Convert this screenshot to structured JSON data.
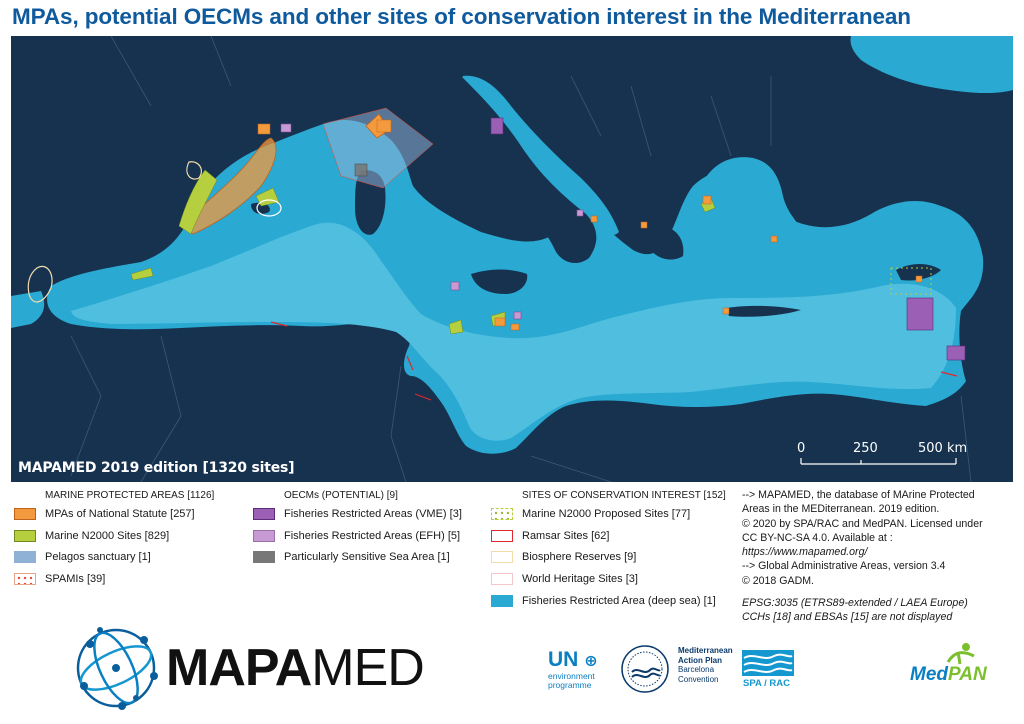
{
  "title": "MPAs, potential OECMs and other sites of conservation interest in the Mediterranean",
  "map": {
    "edition_label": "MAPAMED 2019 edition [1320 sites]",
    "scale_bar": {
      "labels": [
        "0",
        "250",
        "500 km"
      ],
      "unit": "km"
    },
    "colors": {
      "land": "#16324f",
      "sea": "#2aa9d2",
      "deep_sea_fra": "#4fbedf",
      "mpa": "#f39a3e",
      "n2000": "#b6cf3e",
      "pelagos": "#8fb1d6",
      "spami_dot": "#e8492e",
      "vme": "#9b5fb5",
      "efh": "#c89ad4",
      "pssa": "#777777",
      "ramsar": "#e0282e",
      "biosphere": "#f3dcac",
      "whs": "#f3c7c7"
    }
  },
  "legend": {
    "columns": [
      {
        "heading": "MARINE PROTECTED AREAS [1126]",
        "items": [
          {
            "label": "MPAs of National Statute [257]",
            "icon": "mpa-swatch"
          },
          {
            "label": "Marine N2000 Sites [829]",
            "icon": "n2000-swatch"
          },
          {
            "label": "Pelagos sanctuary [1]",
            "icon": "pelagos-swatch"
          },
          {
            "label": "SPAMIs [39]",
            "icon": "spami-swatch"
          }
        ]
      },
      {
        "heading": "OECMs (POTENTIAL) [9]",
        "items": [
          {
            "label": "Fisheries Restricted Areas (VME) [3]",
            "icon": "vme-swatch"
          },
          {
            "label": "Fisheries Restricted Areas (EFH) [5]",
            "icon": "efh-swatch"
          },
          {
            "label": "Particularly Sensitive Sea Area [1]",
            "icon": "pssa-swatch"
          }
        ]
      },
      {
        "heading": "SITES OF CONSERVATION INTEREST [152]",
        "items": [
          {
            "label": "Marine N2000 Proposed Sites [77]",
            "icon": "n2000-proposed-swatch"
          },
          {
            "label": "Ramsar Sites [62]",
            "icon": "ramsar-swatch"
          },
          {
            "label": "Biosphere Reserves [9]",
            "icon": "biosphere-swatch"
          },
          {
            "label": "World Heritage Sites [3]",
            "icon": "whs-swatch"
          },
          {
            "label": "Fisheries Restricted Area (deep sea) [1]",
            "icon": "deep-sea-fra-swatch"
          }
        ]
      }
    ]
  },
  "info": {
    "lines": [
      "--> MAPAMED, the database of MArine Protected",
      "Areas in the MEDiterranean. 2019 edition.",
      "© 2020 by SPA/RAC and MedPAN. Licensed under",
      "CC BY-NC-SA 4.0. Available at :",
      "https://www.mapamed.org/",
      "--> Global Administrative Areas, version 3.4",
      "© 2018 GADM."
    ],
    "notes": [
      "EPSG:3035 (ETRS89-extended / LAEA Europe)",
      "CCHs [18] and EBSAs [15] are not displayed"
    ]
  },
  "logos": {
    "mapamed": {
      "word_a": "MAPA",
      "word_b": "MED"
    },
    "unep": {
      "mark": "UN",
      "sub": [
        "environment",
        "programme"
      ]
    },
    "map": {
      "lines": [
        "Mediterranean",
        "Action Plan",
        "Barcelona",
        "Convention"
      ]
    },
    "sparac": {
      "text": "SPA / RAC"
    },
    "medpan": {
      "a": "Med",
      "b": "PAN"
    }
  }
}
